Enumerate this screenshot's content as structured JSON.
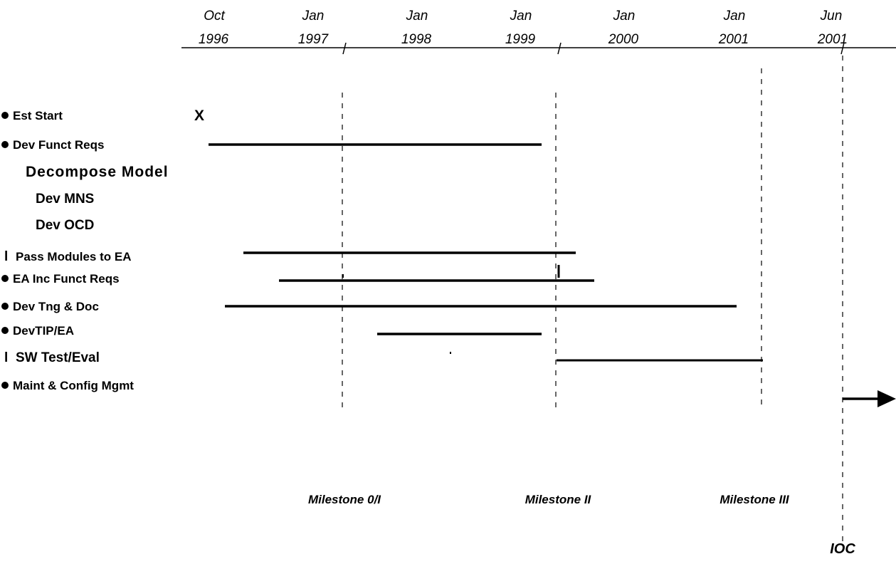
{
  "chart_data": {
    "type": "gantt",
    "time_axis": {
      "ticks": [
        {
          "month": "Oct",
          "year": "1996",
          "date": "1996-10"
        },
        {
          "month": "Jan",
          "year": "1997",
          "date": "1997-01"
        },
        {
          "month": "Jan",
          "year": "1998",
          "date": "1998-01"
        },
        {
          "month": "Jan",
          "year": "1999",
          "date": "1999-01"
        },
        {
          "month": "Jan",
          "year": "2000",
          "date": "2000-01"
        },
        {
          "month": "Jan",
          "year": "2001",
          "date": "2001-01"
        },
        {
          "month": "Jun",
          "year": "2001",
          "date": "2001-06"
        }
      ],
      "axis_markers": [
        "1997-06",
        "1999-10",
        "2001-08"
      ]
    },
    "tasks": [
      {
        "label": "Est Start",
        "bullet": "●",
        "marker": "X",
        "marker_date": "1996-10"
      },
      {
        "label": "Dev Funct Reqs",
        "bullet": "●",
        "start": "1996-10",
        "end": "1999-01"
      },
      {
        "label": "Decompose Model",
        "bullet": ""
      },
      {
        "label": "Dev MNS",
        "bullet": ""
      },
      {
        "label": "Dev OCD",
        "bullet": ""
      },
      {
        "label": "Pass Modules to EA",
        "bullet": "l",
        "start": "1997-01",
        "end": "1999-10"
      },
      {
        "label": "EA Inc Funct Reqs",
        "bullet": "●",
        "start": "1997-04",
        "end": "2000-01"
      },
      {
        "label": "Dev Tng & Doc",
        "bullet": "●",
        "start": "1996-11",
        "end": "2000-12"
      },
      {
        "label": "DevTIP/EA",
        "bullet": "●",
        "start": "1998-01",
        "end": "1999-01"
      },
      {
        "label": "SW Test/Eval",
        "bullet": "l",
        "start": "1999-10",
        "end": "2001-08"
      },
      {
        "label": "Maint & Config Mgmt",
        "bullet": "●",
        "start": "2001-06",
        "end": null,
        "arrow": true
      }
    ],
    "milestones": [
      {
        "label": "Milestone 0/I",
        "date": "1997-06"
      },
      {
        "label": "Milestone II",
        "date": "1999-10"
      },
      {
        "label": "Milestone III",
        "date": "2001-08"
      },
      {
        "label": "IOC",
        "date": "2001-06"
      }
    ]
  }
}
